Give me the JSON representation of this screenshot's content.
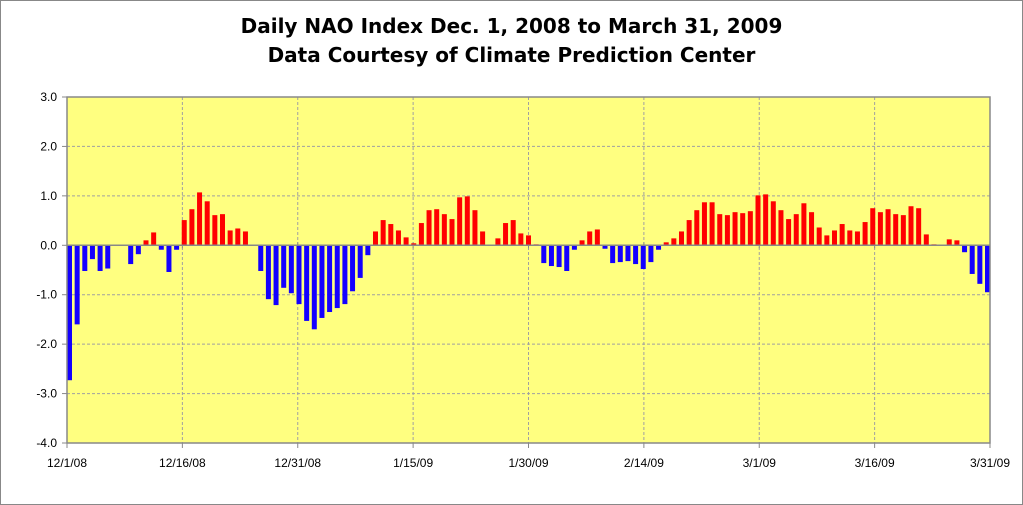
{
  "chart_data": {
    "type": "bar",
    "title": "Daily NAO Index Dec. 1, 2008 to March 31, 2009",
    "subtitle": "Data Courtesy of Climate Prediction Center",
    "xlabel": "",
    "ylabel": "",
    "ylim": [
      -4.0,
      3.0
    ],
    "yticks": [
      "3.0",
      "2.0",
      "1.0",
      "0.0",
      "-1.0",
      "-2.0",
      "-3.0",
      "-4.0"
    ],
    "ytick_values": [
      3,
      2,
      1,
      0,
      -1,
      -2,
      -3,
      -4
    ],
    "x_start": "12/1/08",
    "x_end": "3/31/09",
    "xticks": [
      "12/1/08",
      "12/16/08",
      "12/31/08",
      "1/15/09",
      "1/30/09",
      "2/14/09",
      "3/1/09",
      "3/16/09",
      "3/31/09"
    ],
    "grid": true,
    "legend": "none",
    "colors": {
      "positive": "#FF0000",
      "negative": "#1400FF",
      "plot_background": "#FFFF80",
      "gridline": "#A0A0A0"
    },
    "values": [
      -2.73,
      -1.6,
      -0.52,
      -0.28,
      -0.52,
      -0.47,
      0,
      0,
      -0.38,
      -0.18,
      0.1,
      0.26,
      -0.09,
      -0.54,
      -0.09,
      0.51,
      0.73,
      1.07,
      0.89,
      0.61,
      0.63,
      0.3,
      0.34,
      0.28,
      0,
      -0.52,
      -1.09,
      -1.21,
      -0.86,
      -0.97,
      -1.19,
      -1.53,
      -1.7,
      -1.47,
      -1.35,
      -1.27,
      -1.19,
      -0.93,
      -0.66,
      -0.2,
      0.28,
      0.51,
      0.43,
      0.3,
      0.16,
      0.04,
      0.45,
      0.71,
      0.73,
      0.63,
      0.53,
      0.97,
      0.99,
      0.71,
      0.28,
      0,
      0.14,
      0.45,
      0.51,
      0.24,
      0.2,
      0.02,
      -0.36,
      -0.42,
      -0.44,
      -0.52,
      -0.09,
      0.1,
      0.28,
      0.32,
      -0.07,
      -0.36,
      -0.34,
      -0.32,
      -0.38,
      -0.48,
      -0.34,
      -0.09,
      0.06,
      0.14,
      0.28,
      0.51,
      0.71,
      0.87,
      0.87,
      0.63,
      0.61,
      0.67,
      0.65,
      0.69,
      1.01,
      1.03,
      0.89,
      0.71,
      0.53,
      0.63,
      0.85,
      0.67,
      0.36,
      0.2,
      0.3,
      0.43,
      0.3,
      0.28,
      0.47,
      0.75,
      0.67,
      0.73,
      0.63,
      0.61,
      0.79,
      0.75,
      0.22,
      0.02,
      0,
      0.12,
      0.1,
      -0.14,
      -0.58,
      -0.78,
      -0.95
    ]
  }
}
